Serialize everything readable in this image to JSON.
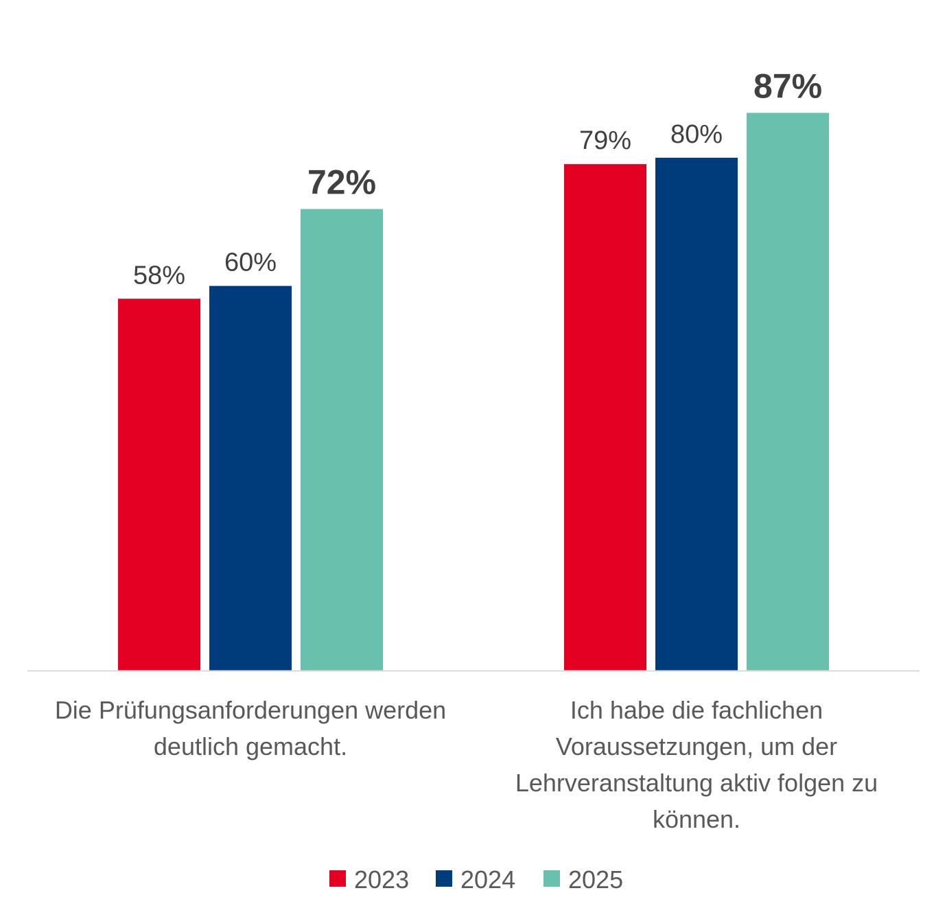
{
  "chart_data": {
    "type": "bar",
    "title": "",
    "xlabel": "",
    "ylabel": "",
    "ylim": [
      0,
      100
    ],
    "grid": false,
    "legend_position": "bottom",
    "categories": [
      [
        "Die Prüfungsanforderungen werden",
        "deutlich gemacht."
      ],
      [
        "Ich habe die fachlichen",
        "Voraussetzungen, um der",
        "Lehrveranstaltung aktiv folgen zu",
        "können."
      ]
    ],
    "series": [
      {
        "name": "2023",
        "color": "#E30022",
        "values": [
          58,
          79
        ],
        "labels": [
          "58%",
          "79%"
        ],
        "bold": false
      },
      {
        "name": "2024",
        "color": "#003B7B",
        "values": [
          60,
          80
        ],
        "labels": [
          "60%",
          "80%"
        ],
        "bold": false
      },
      {
        "name": "2025",
        "color": "#69C1AD",
        "values": [
          72,
          87
        ],
        "labels": [
          "72%",
          "87%"
        ],
        "bold": true
      }
    ]
  }
}
